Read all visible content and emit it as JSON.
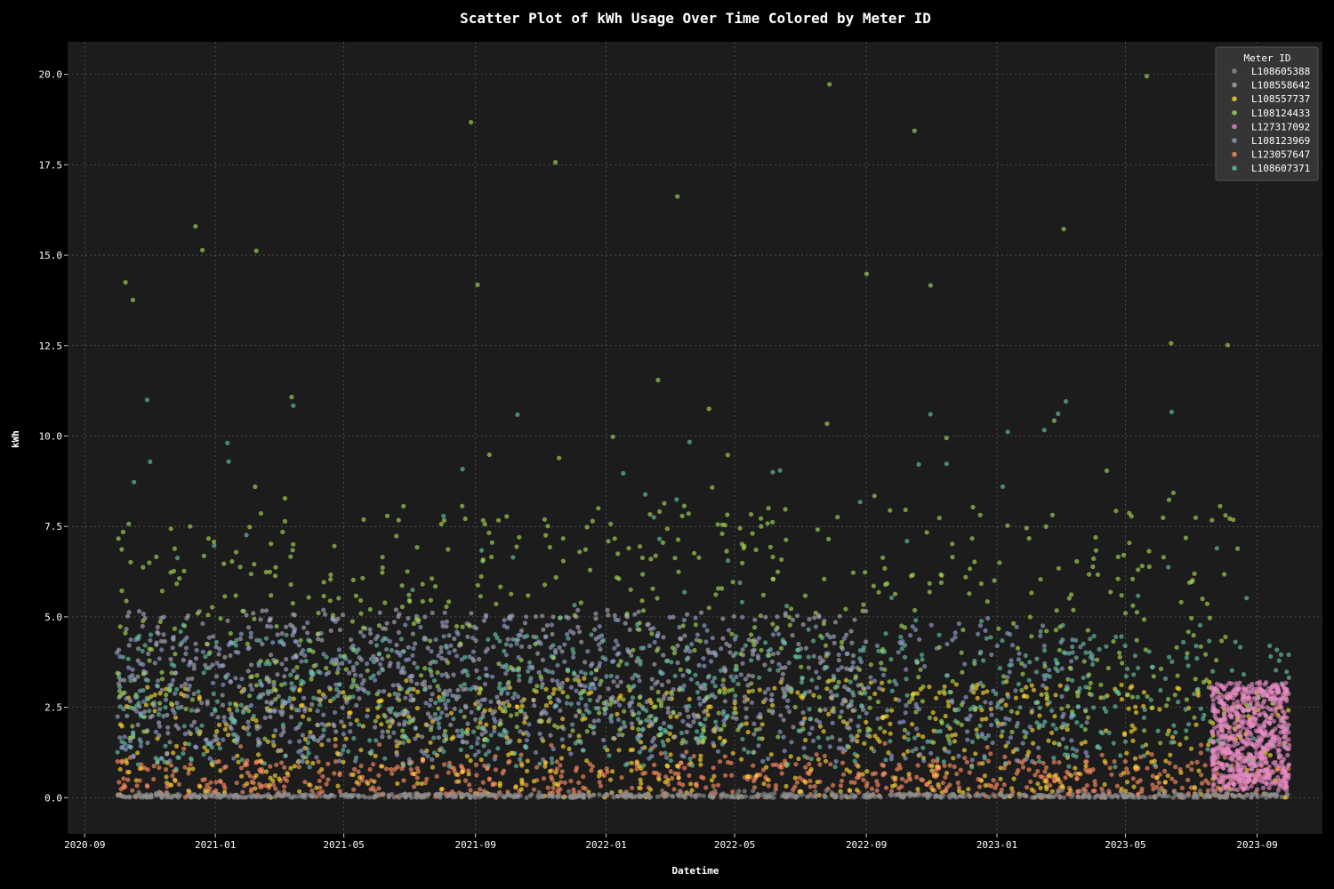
{
  "chart_data": {
    "type": "scatter",
    "title": "Scatter Plot of kWh Usage Over Time Colored by Meter ID",
    "xlabel": "Datetime",
    "ylabel": "kWh",
    "x_range": [
      "2020-08-16",
      "2023-11-01"
    ],
    "ylim": [
      -1.0,
      20.9
    ],
    "x_ticks": [
      "2020-09",
      "2021-01",
      "2021-05",
      "2021-09",
      "2022-01",
      "2022-05",
      "2022-09",
      "2023-01",
      "2023-05",
      "2023-09"
    ],
    "x_tick_dates": [
      "2020-09-01",
      "2021-01-01",
      "2021-05-01",
      "2021-09-01",
      "2022-01-01",
      "2022-05-01",
      "2022-09-01",
      "2023-01-01",
      "2023-05-01",
      "2023-09-01"
    ],
    "y_ticks": [
      "0.0",
      "2.5",
      "5.0",
      "7.5",
      "10.0",
      "12.5",
      "15.0",
      "17.5",
      "20.0"
    ],
    "y_tick_values": [
      0,
      2.5,
      5,
      7.5,
      10,
      12.5,
      15,
      17.5,
      20
    ],
    "grid": true,
    "legend_position": "top-right",
    "legend_title": "Meter ID",
    "series": [
      {
        "name": "L108605388",
        "color": "#8f8f8f",
        "date_range": [
          "2020-10-01",
          "2023-10-01"
        ],
        "typical_range": [
          0.0,
          0.1
        ],
        "max": 0.2
      },
      {
        "name": "L108558642",
        "color": "#a8a8b8",
        "date_range": [
          "2020-10-01",
          "2022-09-01"
        ],
        "typical_range": [
          1.5,
          5.0
        ],
        "max": 5.2
      },
      {
        "name": "L108557737",
        "color": "#ffd92f",
        "date_range": [
          "2020-10-01",
          "2023-10-01"
        ],
        "typical_range": [
          0.0,
          3.0
        ],
        "max": 3.3
      },
      {
        "name": "L108124433",
        "color": "#a6d854",
        "date_range": [
          "2020-10-01",
          "2023-08-15"
        ],
        "typical_range": [
          1.5,
          8.0
        ],
        "max": 19.95
      },
      {
        "name": "L127317092",
        "color": "#e78ac3",
        "date_range": [
          "2023-07-20",
          "2023-10-01"
        ],
        "typical_range": [
          0.2,
          3.0
        ],
        "max": 3.2
      },
      {
        "name": "L108123969",
        "color": "#8da0cb",
        "date_range": [
          "2020-10-01",
          "2023-04-01"
        ],
        "typical_range": [
          1.0,
          4.5
        ],
        "max": 5.0
      },
      {
        "name": "L123057647",
        "color": "#fc8d62",
        "date_range": [
          "2020-10-01",
          "2023-10-01"
        ],
        "typical_range": [
          0.0,
          1.0
        ],
        "max": 1.5
      },
      {
        "name": "L108607371",
        "color": "#66c2a5",
        "date_range": [
          "2020-10-01",
          "2023-10-01"
        ],
        "typical_range": [
          0.8,
          4.5
        ],
        "max": 11.0
      }
    ]
  }
}
